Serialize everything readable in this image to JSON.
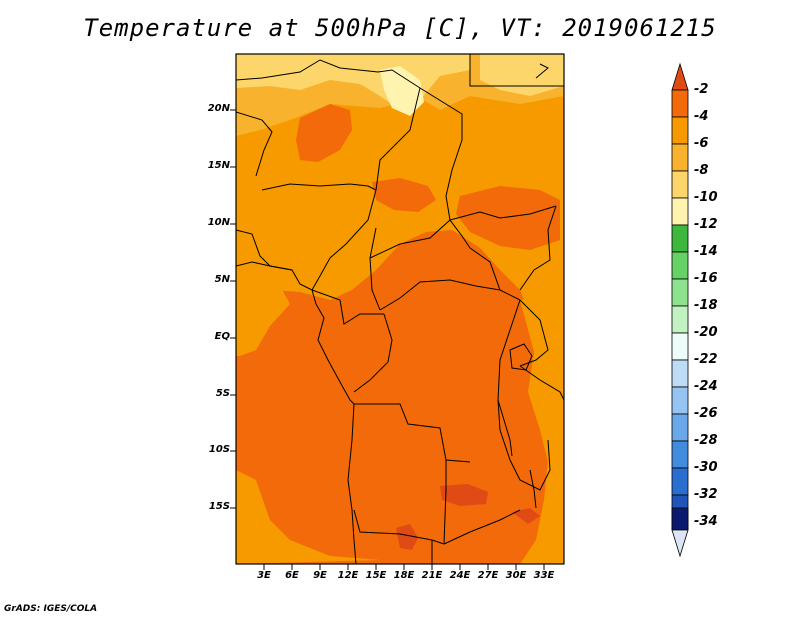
{
  "title": "Temperature at 500hPa [C], VT: 2019061215",
  "footer": "GrADS: IGES/COLA",
  "map": {
    "lat_labels": [
      "20N",
      "15N",
      "10N",
      "5N",
      "EQ",
      "5S",
      "10S",
      "15S"
    ],
    "lon_labels": [
      "3E",
      "6E",
      "9E",
      "12E",
      "15E",
      "18E",
      "21E",
      "24E",
      "27E",
      "30E",
      "33E"
    ]
  },
  "colorbar": {
    "labels": [
      "-2",
      "-4",
      "-6",
      "-8",
      "-10",
      "-12",
      "-14",
      "-16",
      "-18",
      "-20",
      "-22",
      "-24",
      "-26",
      "-28",
      "-30",
      "-32",
      "-34"
    ],
    "colors": {
      "c0": "#e04a14",
      "c1": "#f26a0a",
      "c2": "#f79a00",
      "c3": "#f8b22e",
      "c4": "#fcd66a",
      "c5": "#fff3b0",
      "c6": "#3db83d",
      "c7": "#66d266",
      "c8": "#8ee38e",
      "c9": "#c2f2c2",
      "c10": "#eefcf9",
      "c11": "#bfdcf7",
      "c12": "#96c4f2",
      "c13": "#6aa8ea",
      "c14": "#428ce0",
      "c15": "#2a6fd0",
      "c16": "#1f55bb",
      "c17": "#14389a",
      "c18": "#0b1a6e",
      "c19": "#dde4f6"
    }
  }
}
